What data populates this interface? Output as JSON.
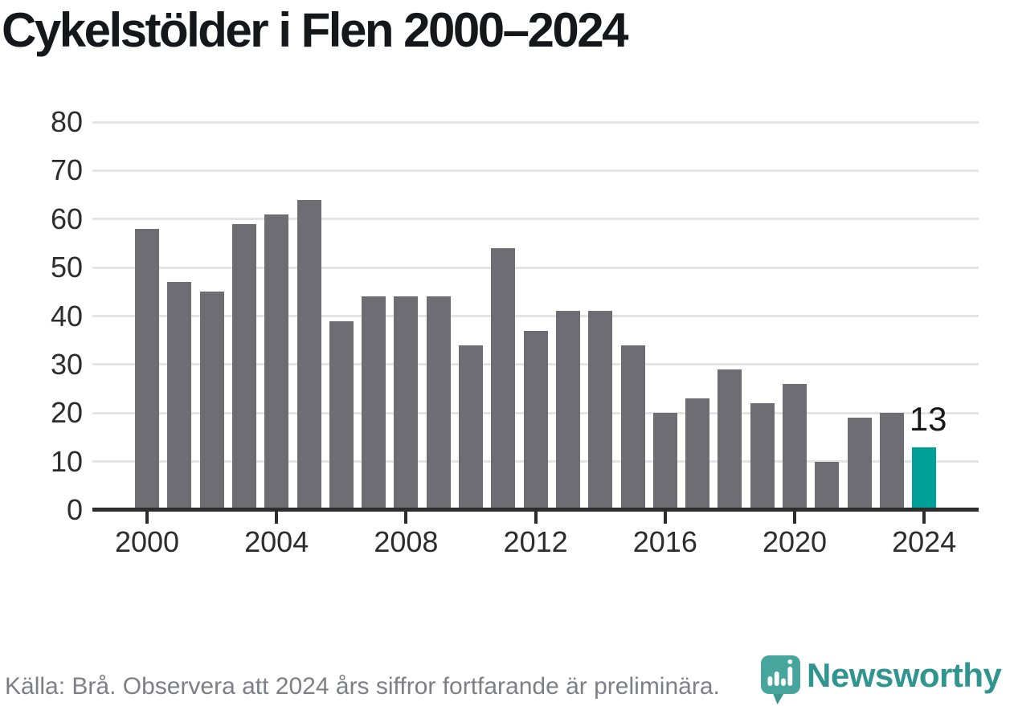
{
  "page": {
    "title": "Cykelstölder i Flen 2000–2024"
  },
  "chart_data": {
    "type": "bar",
    "title": "Cykelstölder i Flen 2000–2024",
    "categories": [
      2000,
      2001,
      2002,
      2003,
      2004,
      2005,
      2006,
      2007,
      2008,
      2009,
      2010,
      2011,
      2012,
      2013,
      2014,
      2015,
      2016,
      2017,
      2018,
      2019,
      2020,
      2021,
      2022,
      2023,
      2024
    ],
    "values": [
      58,
      47,
      45,
      59,
      61,
      64,
      39,
      44,
      44,
      44,
      34,
      54,
      37,
      41,
      41,
      34,
      20,
      23,
      29,
      22,
      26,
      10,
      19,
      20,
      13
    ],
    "ylim": [
      0,
      80
    ],
    "yticks": [
      0,
      10,
      20,
      30,
      40,
      50,
      60,
      70,
      80
    ],
    "xticks": [
      2000,
      2004,
      2008,
      2012,
      2016,
      2020,
      2024
    ],
    "grid": true,
    "legend_position": "none",
    "xlabel": "",
    "ylabel": "",
    "bar_color": "#6e6d73",
    "grid_color": "#e4e4e5",
    "axis_color": "#2d2d2d",
    "highlight": {
      "index": 24,
      "year": 2024,
      "value": 13,
      "label": "13",
      "color": "#00a099"
    }
  },
  "footer": {
    "source_note": "Källa: Brå. Observera att 2024 års siffror fortfarande är preliminära."
  },
  "branding": {
    "name": "Newsworthy",
    "icon": "newsworthy-pin-bar-chart-icon",
    "color": "#2f958e",
    "icon_color": "#46a59d"
  }
}
